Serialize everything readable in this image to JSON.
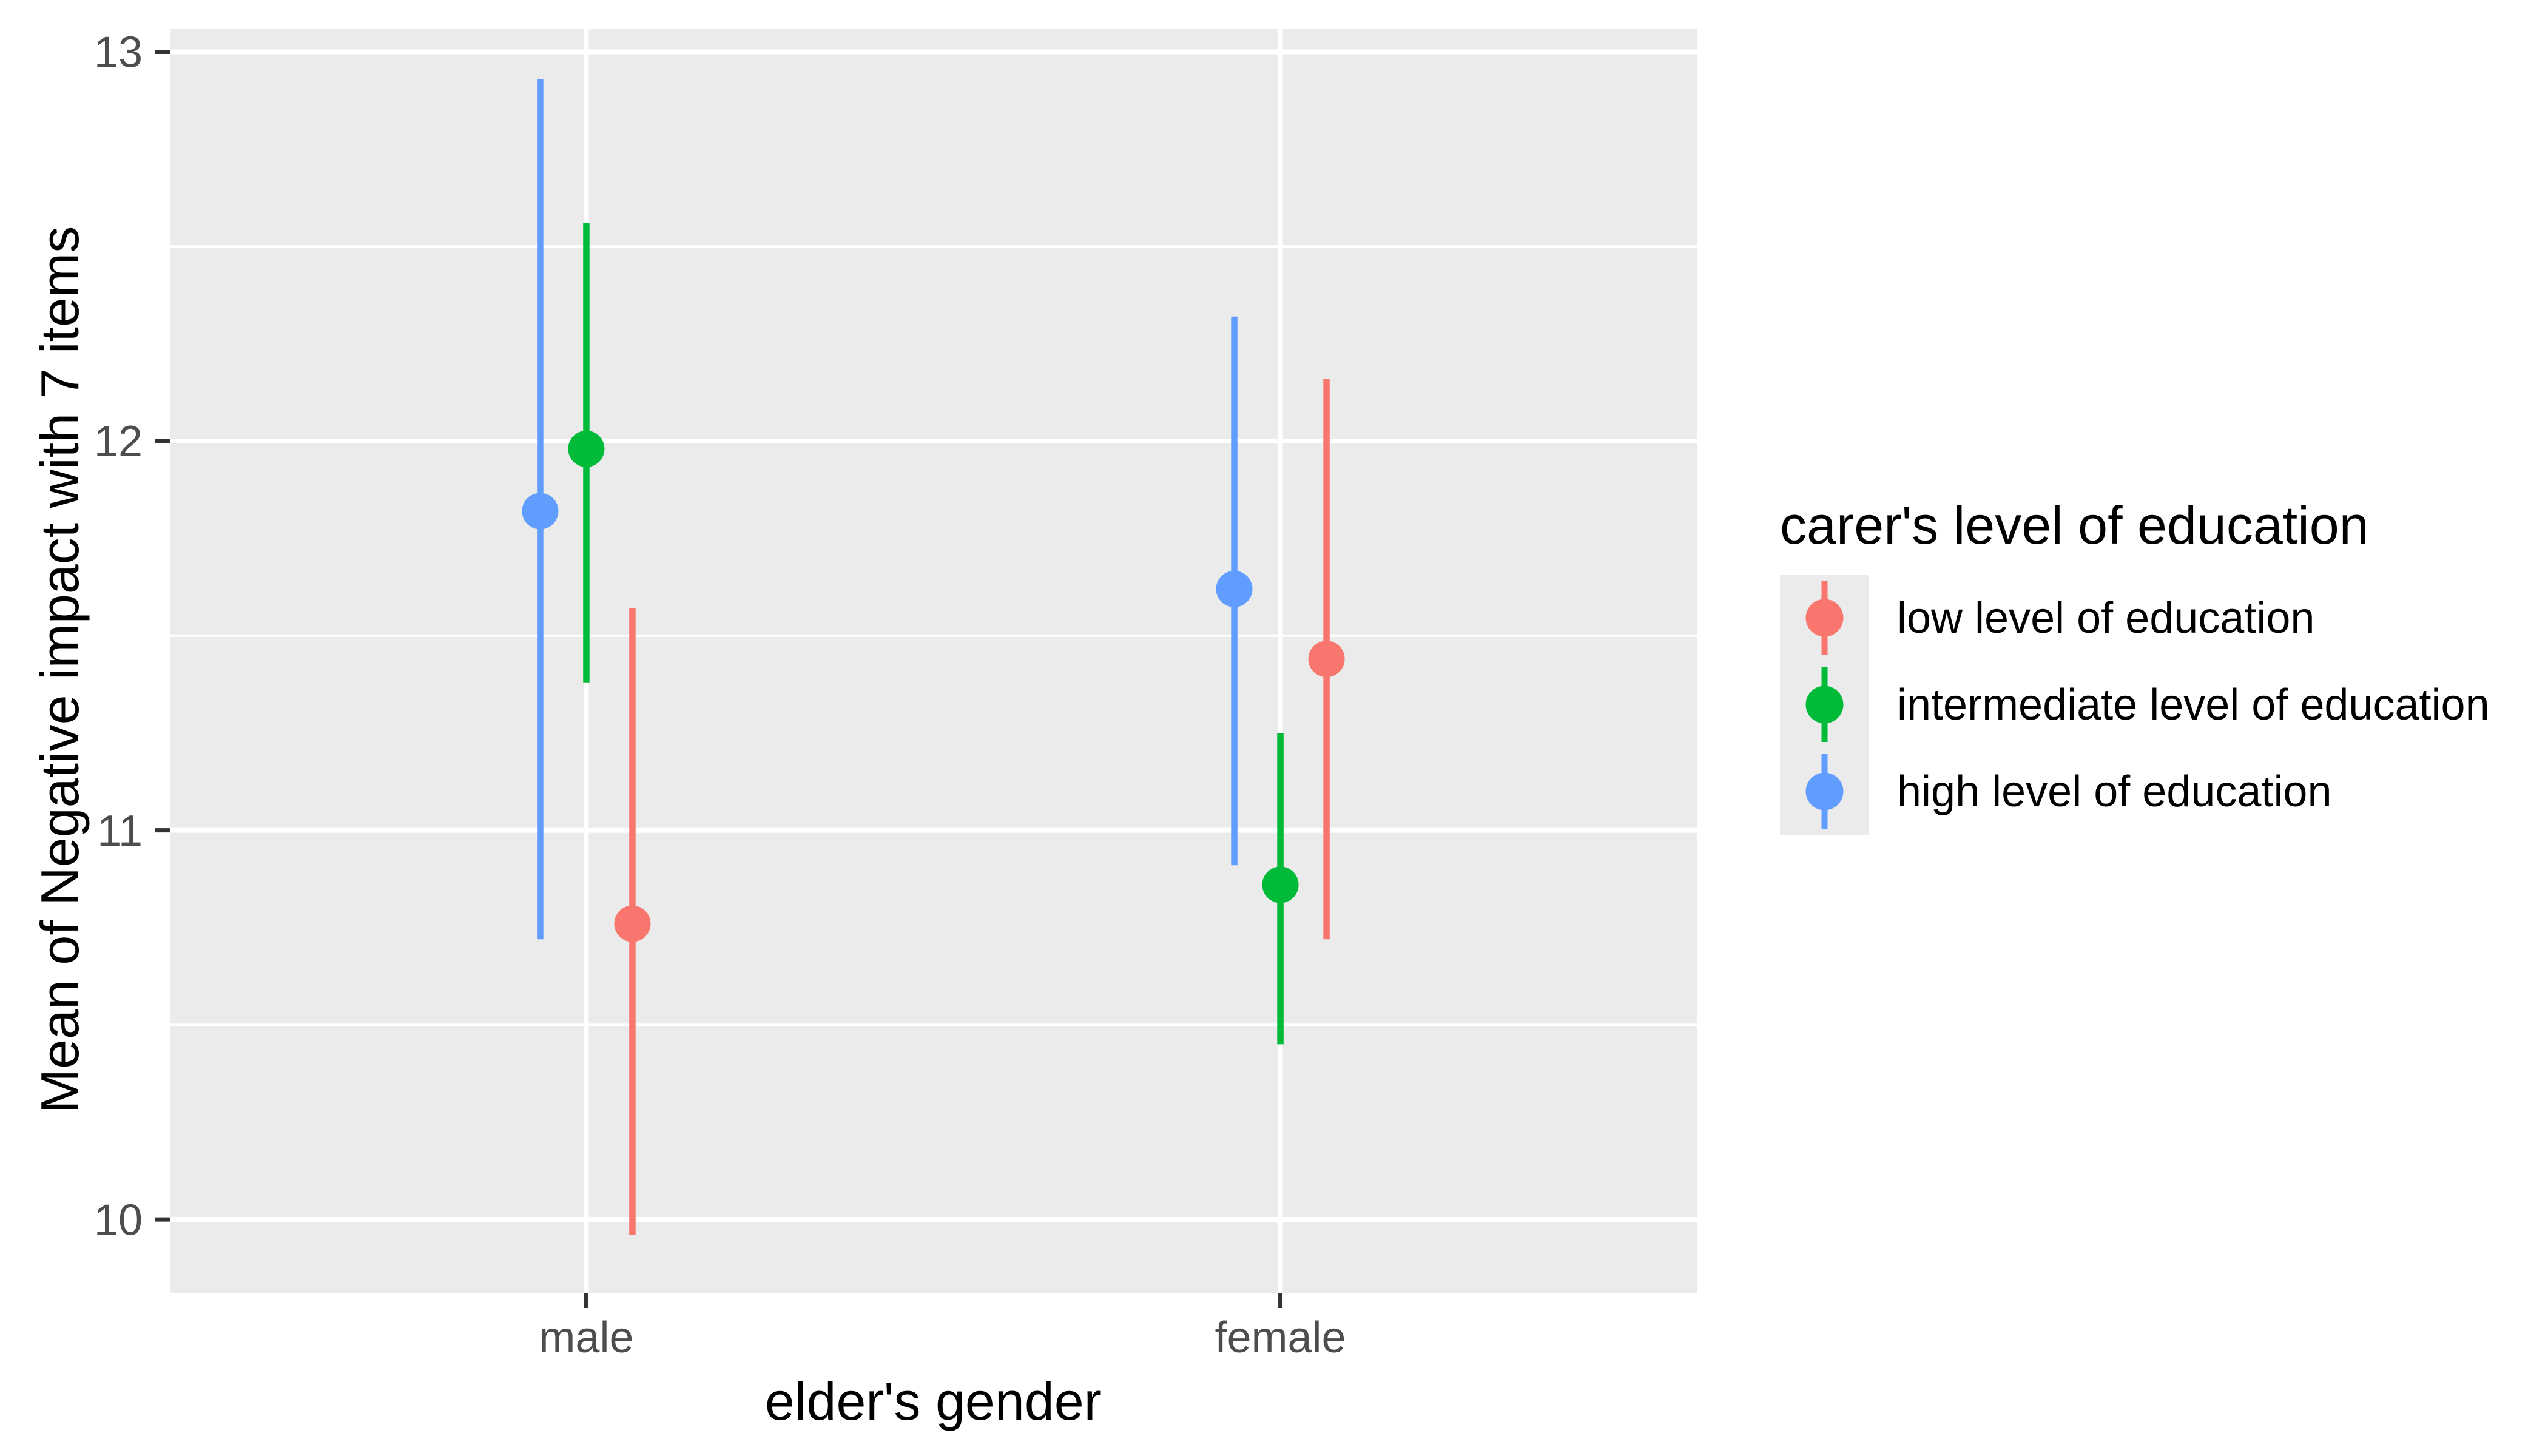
{
  "chart_data": {
    "type": "scatter",
    "geom": "pointrange-dodged",
    "title": "",
    "xlabel": "elder's gender",
    "ylabel": "Mean of Negative impact with 7 items",
    "categories": [
      "male",
      "female"
    ],
    "ylim": [
      9.81,
      13.06
    ],
    "yticks": [
      10,
      11,
      12,
      13
    ],
    "ytick_labels": [
      "10",
      "11",
      "12",
      "13"
    ],
    "yticks_minor": [
      10.5,
      11.5,
      12.5
    ],
    "grid": "white major+minor horizontal gridlines and white vertical gridlines at category centers on grey panel",
    "legend_position": "right",
    "series": [
      {
        "name": "low level of education",
        "color": "#F8766D",
        "dodge_order": 1,
        "points": [
          {
            "category": "male",
            "mean": 10.76,
            "lower": 9.96,
            "upper": 11.57
          },
          {
            "category": "female",
            "mean": 11.44,
            "lower": 10.72,
            "upper": 12.16
          }
        ]
      },
      {
        "name": "intermediate level of education",
        "color": "#00BA38",
        "dodge_order": 0,
        "points": [
          {
            "category": "male",
            "mean": 11.98,
            "lower": 11.38,
            "upper": 12.56
          },
          {
            "category": "female",
            "mean": 10.86,
            "lower": 10.45,
            "upper": 11.25
          }
        ]
      },
      {
        "name": "high level of education",
        "color": "#619CFF",
        "dodge_order": -1,
        "points": [
          {
            "category": "male",
            "mean": 11.82,
            "lower": 10.72,
            "upper": 12.93
          },
          {
            "category": "female",
            "mean": 11.62,
            "lower": 10.91,
            "upper": 12.32
          }
        ]
      }
    ]
  },
  "legend": {
    "title": "carer's level of education",
    "items": [
      {
        "label": "low level of education",
        "color": "#F8766D"
      },
      {
        "label": "intermediate level of education",
        "color": "#00BA38"
      },
      {
        "label": "high level of education",
        "color": "#619CFF"
      }
    ]
  },
  "theme": {
    "background": "#FFFFFF",
    "panel_background": "#EBEBEB",
    "gridline_color": "#FFFFFF",
    "axis_text_color": "#4D4D4D",
    "axis_tick_color": "#333333",
    "title_color": "#000000"
  }
}
